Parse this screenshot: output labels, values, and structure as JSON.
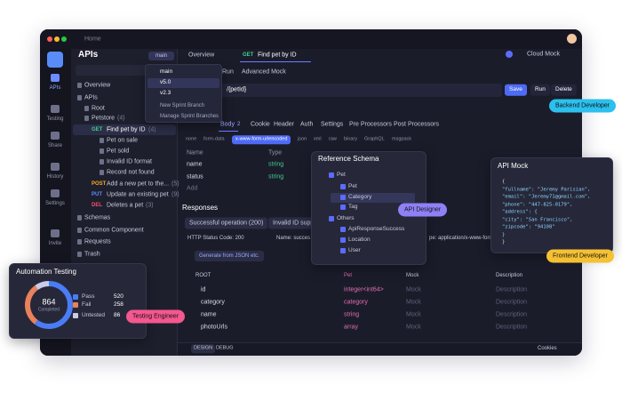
{
  "window": {
    "breadcrumb": "Home",
    "env": "Cloud Mock"
  },
  "sidebar": [
    "APIs",
    "Testing",
    "Share",
    "History",
    "Settings",
    "Invite"
  ],
  "apis_panel": {
    "title": "APIs",
    "branch": "main",
    "tree": [
      {
        "label": "Overview"
      },
      {
        "label": "APIs"
      },
      {
        "label": "Root"
      },
      {
        "label": "Petstore",
        "count": "(4)"
      },
      {
        "method": "GET",
        "label": "Find pet by ID",
        "count": "(4)"
      },
      {
        "label": "Pet on sale"
      },
      {
        "label": "Pet sold"
      },
      {
        "label": "Invalid ID format"
      },
      {
        "label": "Record not found"
      },
      {
        "method": "POST",
        "label": "Add a new pet to the...",
        "count": "(5)"
      },
      {
        "method": "PUT",
        "label": "Update an existing pet",
        "count": "(9)"
      },
      {
        "method": "DEL",
        "label": "Deletes a pet",
        "count": "(3)"
      },
      {
        "label": "Schemas"
      },
      {
        "label": "Common Component"
      },
      {
        "label": "Requests"
      },
      {
        "label": "Trash"
      }
    ]
  },
  "branch_menu": {
    "branches": [
      "main",
      "v5.0",
      "v2.3"
    ],
    "actions": [
      "New Sprint Branch",
      "Manage Sprint Branches"
    ]
  },
  "tabs": {
    "overview": "Overview",
    "method": "GET",
    "endpoint": "Find pet by ID"
  },
  "subtabs": [
    "Run",
    "Advanced Mock"
  ],
  "request": {
    "url": "/{petId}",
    "buttons": [
      "Save",
      "Run",
      "Delete"
    ]
  },
  "request_tabs": {
    "body": "Body",
    "body_count": "2",
    "others": [
      "Cookie",
      "Header",
      "Auth",
      "Settings",
      "Pre Processors",
      "Post Processors"
    ]
  },
  "body_types": [
    "none",
    "form-data",
    "x-www-form-urlencoded",
    "json",
    "xml",
    "raw",
    "binary",
    "GraphQL",
    "msgpack"
  ],
  "params": {
    "headers": [
      "Name",
      "Type"
    ],
    "rows": [
      [
        "name",
        "string"
      ],
      [
        "status",
        "string"
      ]
    ],
    "add": "Add"
  },
  "responses": {
    "title": "Responses",
    "tabs": [
      "Successful operation (200)",
      "Invalid ID supplied"
    ],
    "status_label": "HTTP Status Code: 200",
    "name_label": "Name:  succes",
    "content_type": "pe:  application/x-www-form",
    "generate": "Generate from JSON etc."
  },
  "schema_table": {
    "headers": [
      "ROOT",
      "Pet",
      "Mock",
      "Description"
    ],
    "rows": [
      [
        "id",
        "integer<int64>"
      ],
      [
        "category",
        "category"
      ],
      [
        "name",
        "string"
      ],
      [
        "photoUrls",
        "array"
      ]
    ],
    "mock": "Mock",
    "description": "Description"
  },
  "footer": {
    "modes": [
      "DESIGN",
      "DEBUG"
    ],
    "cookies": "Cookies"
  },
  "reference_schema": {
    "title": "Reference Schema",
    "items": [
      "Pet",
      "Pet",
      "Category",
      "Tag",
      "Others",
      "ApiResponseSuccess",
      "Location",
      "User"
    ]
  },
  "api_mock": {
    "title": "API Mock",
    "lines": [
      "{",
      "  \"fullname\": \"Jeremy Parisian\",",
      "  \"email\": \"Jeremy71@gmail.com\",",
      "  \"phone\": \"447-825-0179\",",
      "  \"address\": {",
      "    \"city\": \"San Francisco\",",
      "    \"zipcode\": \"94108\"",
      "  }",
      "}"
    ]
  },
  "automation": {
    "title": "Automation Testing",
    "completed": 864,
    "completed_label": "Completed",
    "legend": [
      {
        "name": "Pass",
        "value": 520,
        "color": "#4a7cf6"
      },
      {
        "name": "Fail",
        "value": 258,
        "color": "#e9815a"
      },
      {
        "name": "Untested",
        "value": 86,
        "color": "#c9cbe8"
      }
    ]
  },
  "tags": {
    "backend": "Backend Developer",
    "designer": "API Designer",
    "frontend": "Frontend Developer",
    "tester": "Testing Engineer"
  }
}
